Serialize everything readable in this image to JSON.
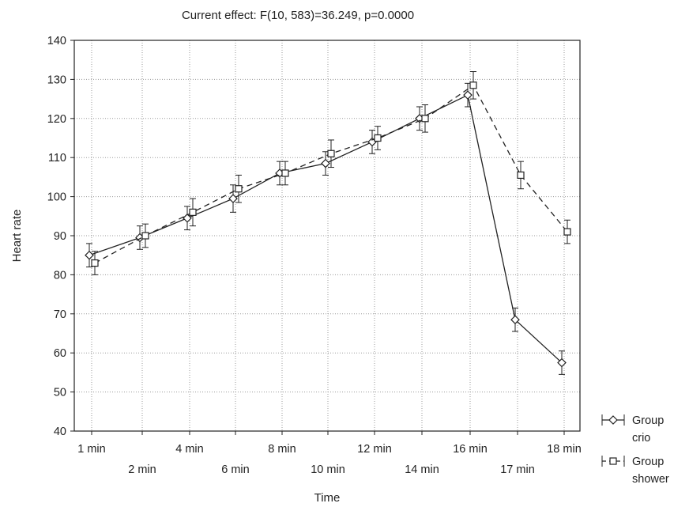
{
  "chart_data": {
    "type": "line",
    "title": "Current effect: F(10, 583)=36.249, p=0.0000",
    "xlabel": "Time",
    "ylabel": "Heart rate",
    "ylim": [
      40,
      140
    ],
    "yticks": [
      40,
      50,
      60,
      70,
      80,
      90,
      100,
      110,
      120,
      130,
      140
    ],
    "grid": true,
    "legend_position": "right-bottom",
    "categories": [
      "1 min",
      "2 min",
      "4 min",
      "6 min",
      "8 min",
      "10 min",
      "12 min",
      "14 min",
      "16 min",
      "17 min",
      "18 min"
    ],
    "series": [
      {
        "name": "Group crio",
        "line_style": "solid",
        "marker": "diamond",
        "values": [
          85,
          89.5,
          94.5,
          99.5,
          106,
          108.5,
          114,
          120,
          126,
          68.5,
          57.5
        ],
        "error": [
          3,
          3,
          3,
          3.5,
          3,
          3,
          3,
          3,
          3,
          3,
          3
        ]
      },
      {
        "name": "Group shower",
        "line_style": "dashed",
        "marker": "square",
        "values": [
          83,
          90,
          96,
          102,
          106,
          111,
          115,
          120,
          128.5,
          105.5,
          91
        ],
        "error": [
          3,
          3,
          3.5,
          3.5,
          3,
          3.5,
          3,
          3.5,
          3.5,
          3.5,
          3
        ]
      }
    ]
  }
}
